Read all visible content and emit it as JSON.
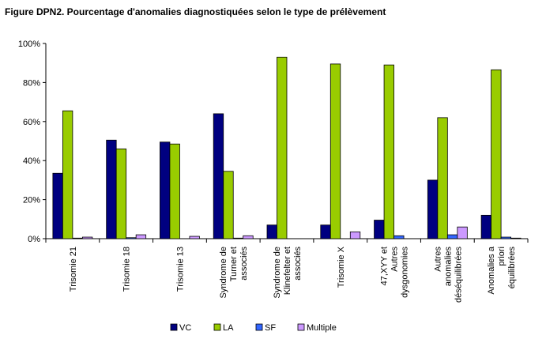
{
  "title": "Figure DPN2. Pourcentage d'anomalies diagnostiquées selon le type de prélèvement",
  "chart_data": {
    "type": "bar",
    "title": "Figure DPN2. Pourcentage d'anomalies diagnostiquées selon le type de prélèvement",
    "xlabel": "",
    "ylabel": "",
    "ylim": [
      0,
      100
    ],
    "yticks": [
      "0%",
      "20%",
      "40%",
      "60%",
      "80%",
      "100%"
    ],
    "grid": false,
    "legend_position": "bottom",
    "categories": [
      [
        "Trisomie 21"
      ],
      [
        "Trisomie 18"
      ],
      [
        "Trisomie 13"
      ],
      [
        "Syndrome de",
        "Turner et",
        "associés"
      ],
      [
        "Syndrome de",
        "Klinefelter et",
        "associés"
      ],
      [
        "Trisomie X"
      ],
      [
        "47,XYY et",
        "Autres",
        "dysgonomies"
      ],
      [
        "Autres",
        "anomalies",
        "déséquilibrées"
      ],
      [
        "Anomalies a",
        "priori",
        "équilibrées"
      ]
    ],
    "series": [
      {
        "name": "VC",
        "color": "#000080",
        "values": [
          33.5,
          50.5,
          49.5,
          64,
          7,
          7,
          9.5,
          30,
          12
        ]
      },
      {
        "name": "LA",
        "color": "#99CC00",
        "values": [
          65.5,
          46,
          48.5,
          34.5,
          93,
          89.5,
          89,
          62,
          86.5
        ]
      },
      {
        "name": "SF",
        "color": "#3366FF",
        "values": [
          0.3,
          0.5,
          0,
          0.3,
          0,
          0,
          1.5,
          2,
          0.8
        ]
      },
      {
        "name": "Multiple",
        "color": "#CC99FF",
        "values": [
          0.8,
          2,
          1.2,
          1.5,
          0,
          3.5,
          0,
          6,
          0.3
        ]
      }
    ]
  }
}
